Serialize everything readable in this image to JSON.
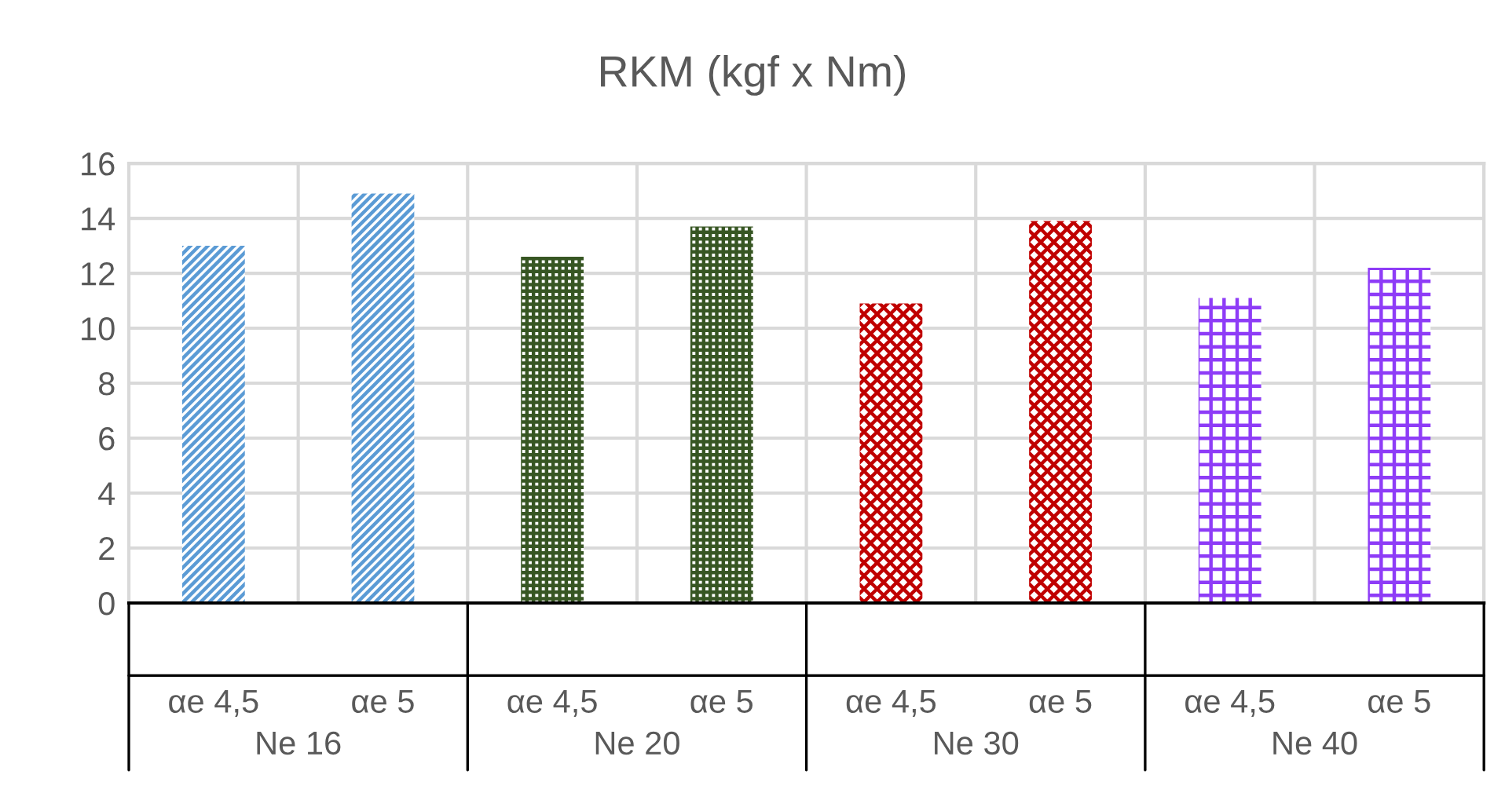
{
  "chart_data": {
    "type": "bar",
    "title": "RKM (kgf x Nm)",
    "categories": [
      "αe 4,5",
      "αe 5",
      "αe 4,5",
      "αe 5",
      "αe 4,5",
      "αe 5",
      "αe 4,5",
      "αe 5"
    ],
    "values": [
      13.0,
      14.9,
      12.6,
      13.7,
      10.9,
      13.9,
      11.1,
      12.2
    ],
    "colors": [
      "#5b9bd5",
      "#5b9bd5",
      "#375623",
      "#375623",
      "#c00000",
      "#c00000",
      "#8e3cf7",
      "#8e3cf7"
    ],
    "annotations": [
      "Ne 16",
      "Ne 20",
      "Ne 30",
      "Ne 40"
    ],
    "ylim": [
      0,
      16
    ],
    "yticks": [
      0,
      2,
      4,
      6,
      8,
      10,
      12,
      14,
      16
    ],
    "grid": true,
    "legend": false
  }
}
